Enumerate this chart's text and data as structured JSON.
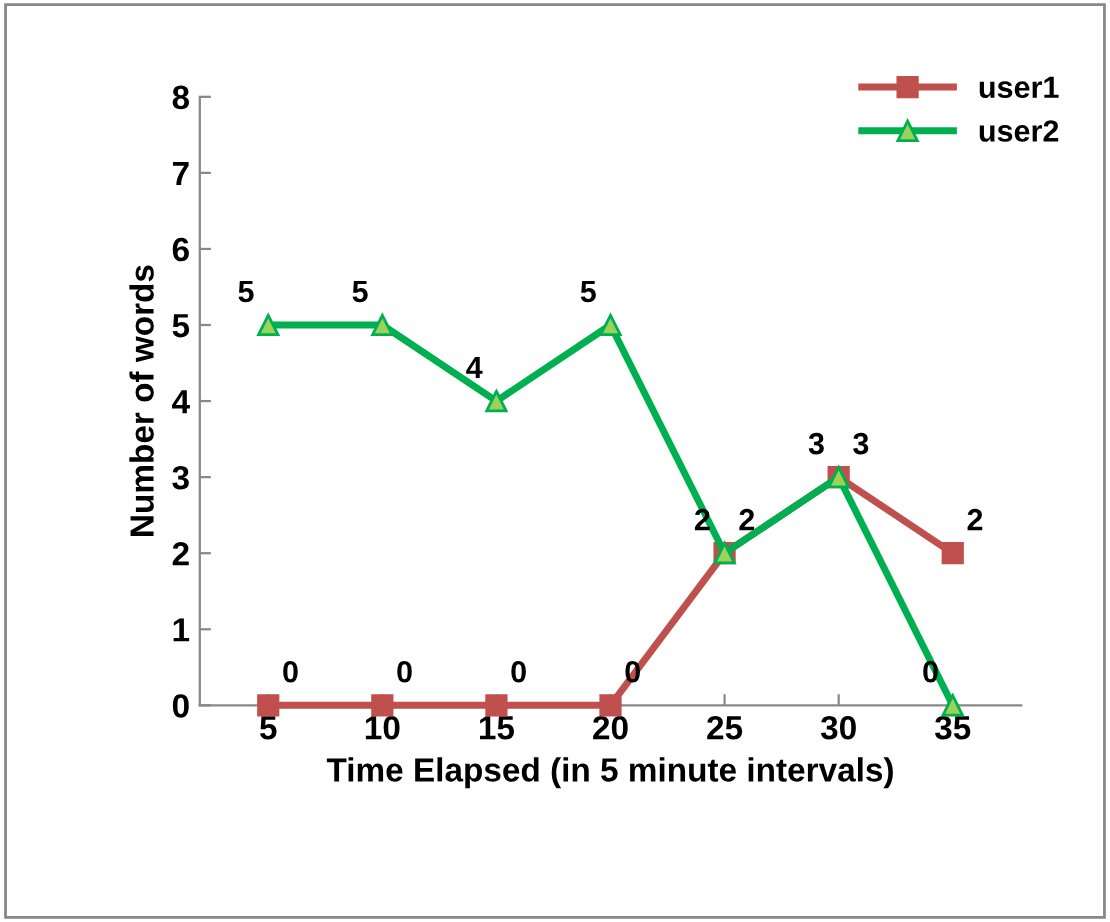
{
  "chart_data": {
    "type": "line",
    "xlabel": "Time Elapsed (in 5 minute intervals)",
    "ylabel": "Number of words",
    "categories": [
      "5",
      "10",
      "15",
      "20",
      "25",
      "30",
      "35"
    ],
    "series": [
      {
        "name": "user1",
        "color": "#c0504d",
        "marker": "square",
        "values": [
          0,
          0,
          0,
          0,
          2,
          3,
          2
        ]
      },
      {
        "name": "user2",
        "color": "#00b050",
        "marker": "triangle",
        "values": [
          5,
          5,
          4,
          5,
          2,
          3,
          0
        ]
      }
    ],
    "ylim": [
      0,
      8
    ],
    "yticks": [
      0,
      1,
      2,
      3,
      4,
      5,
      6,
      7,
      8
    ],
    "grid": false,
    "legend": "top right",
    "data_labels": true,
    "line_style": "solid"
  }
}
